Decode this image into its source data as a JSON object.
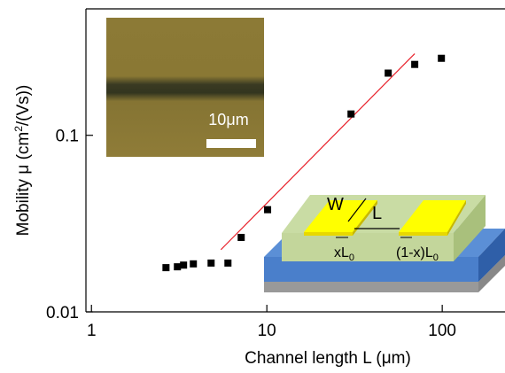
{
  "chart_data": {
    "type": "scatter",
    "log_x": true,
    "log_y": true,
    "xlabel": "Channel length L (μm)",
    "ylabel": [
      "Mobility μ (cm",
      "2",
      "/(Vs))"
    ],
    "xlim": [
      0.93,
      228
    ],
    "ylim": [
      0.01,
      0.52
    ],
    "xticks": [
      1,
      10,
      100
    ],
    "yticks": [
      0.01,
      0.1
    ],
    "series": [
      {
        "color": "#000000",
        "x": [
          2.66,
          3.09,
          3.35,
          3.81,
          4.81,
          6.0,
          7.14,
          10.1,
          30.2,
          49.2,
          69.7,
          98.9
        ],
        "values": [
          0.0178,
          0.018,
          0.0184,
          0.0187,
          0.0189,
          0.0189,
          0.0264,
          0.0379,
          0.132,
          0.225,
          0.252,
          0.273
        ]
      }
    ],
    "fit_line": {
      "color": "#e8202a",
      "x": [
        5.47,
        69.7
      ],
      "values": [
        0.0225,
        0.29
      ]
    },
    "inset": {
      "scale_label": "10μm"
    },
    "schematic": {
      "width_label": "W",
      "length_label": "L",
      "left_gap": [
        "xL",
        "0"
      ],
      "right_gap": [
        "(1-x)L",
        "0"
      ]
    }
  }
}
